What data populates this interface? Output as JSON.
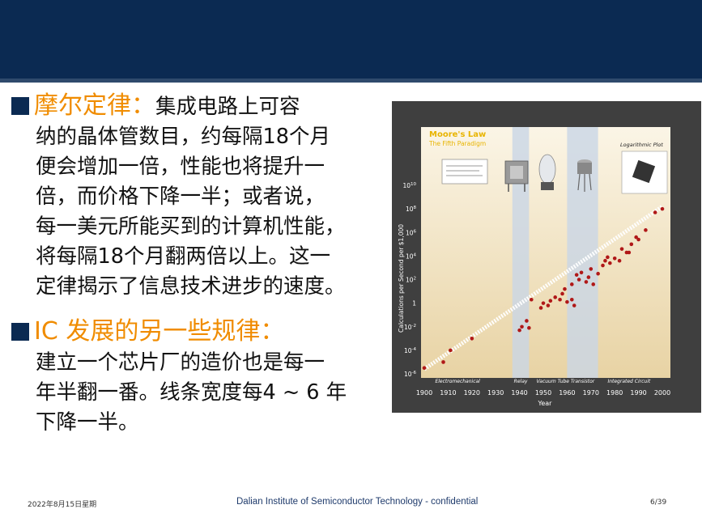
{
  "slide": {
    "bullet1_title": "摩尔定律：",
    "bullet1_lines": [
      "集成电路上可容",
      "纳的晶体管数目，约每隔18个月",
      "便会增加一倍，性能也将提升一",
      "倍，而价格下降一半；或者说，",
      "每一美元所能买到的计算机性能，",
      "将每隔18个月翻两倍以上。这一",
      "定律揭示了信息技术进步的速度。"
    ],
    "bullet2_title": "IC 发展的另一些规律：",
    "bullet2_lines": [
      "建立一个芯片厂的造价也是每一",
      "年半翻一番。线条宽度每4 ~ 6 年",
      "下降一半。"
    ]
  },
  "footer": {
    "date": "2022年8月15日星期",
    "org": "Dalian Institute of Semiconductor Technology - confidential",
    "page": "6/39"
  },
  "chart_data": {
    "type": "scatter",
    "title": "Moore's Law",
    "subtitle": "The Fifth Paradigm",
    "annotation": "Logarithmic Plot",
    "xlabel": "Year",
    "ylabel": "Calculations per Second per $1,000",
    "x_ticks": [
      "1900",
      "1910",
      "1920",
      "1930",
      "1940",
      "1950",
      "1960",
      "1970",
      "1980",
      "1990",
      "2000"
    ],
    "y_ticks": [
      "10-6",
      "10-4",
      "10-2",
      "1",
      "102",
      "104",
      "106",
      "108",
      "1010"
    ],
    "xlim": [
      1900,
      2000
    ],
    "ylim_exponent": [
      -6,
      10
    ],
    "paradigms": [
      "Electromechanical",
      "Relay",
      "Vacuum Tube",
      "Transistor",
      "Integrated Circuit"
    ],
    "colors": {
      "dot": "#b01818",
      "trend": "#ffffff",
      "band": "#c9d6e6",
      "bg_top": "#fbf5e6",
      "bg_bottom": "#e8d3a4",
      "title": "#e8b400"
    },
    "points": [
      [
        1900,
        -5.5
      ],
      [
        1908,
        -5
      ],
      [
        1911,
        -4
      ],
      [
        1920,
        -3
      ],
      [
        1940,
        -2.3
      ],
      [
        1941,
        -2
      ],
      [
        1943,
        -1.5
      ],
      [
        1944,
        -2.1
      ],
      [
        1945,
        0.3
      ],
      [
        1949,
        -0.4
      ],
      [
        1950,
        0
      ],
      [
        1952,
        -0.2
      ],
      [
        1953,
        0.2
      ],
      [
        1955,
        0.5
      ],
      [
        1957,
        0.3
      ],
      [
        1958,
        0.8
      ],
      [
        1959,
        1.2
      ],
      [
        1960,
        0.1
      ],
      [
        1962,
        0.3
      ],
      [
        1963,
        -0.2
      ],
      [
        1962,
        1.6
      ],
      [
        1964,
        2.4
      ],
      [
        1965,
        2
      ],
      [
        1966,
        2.6
      ],
      [
        1968,
        1.8
      ],
      [
        1969,
        2.2
      ],
      [
        1970,
        2.9
      ],
      [
        1971,
        1.6
      ],
      [
        1973,
        2.5
      ],
      [
        1975,
        3.2
      ],
      [
        1976,
        3.6
      ],
      [
        1977,
        3.9
      ],
      [
        1978,
        3.4
      ],
      [
        1980,
        3.8
      ],
      [
        1982,
        3.6
      ],
      [
        1983,
        4.6
      ],
      [
        1985,
        4.3
      ],
      [
        1986,
        4.3
      ],
      [
        1987,
        5
      ],
      [
        1989,
        5.6
      ],
      [
        1990,
        5.4
      ],
      [
        1993,
        6.2
      ],
      [
        1997,
        7.7
      ],
      [
        2000,
        8
      ]
    ]
  }
}
